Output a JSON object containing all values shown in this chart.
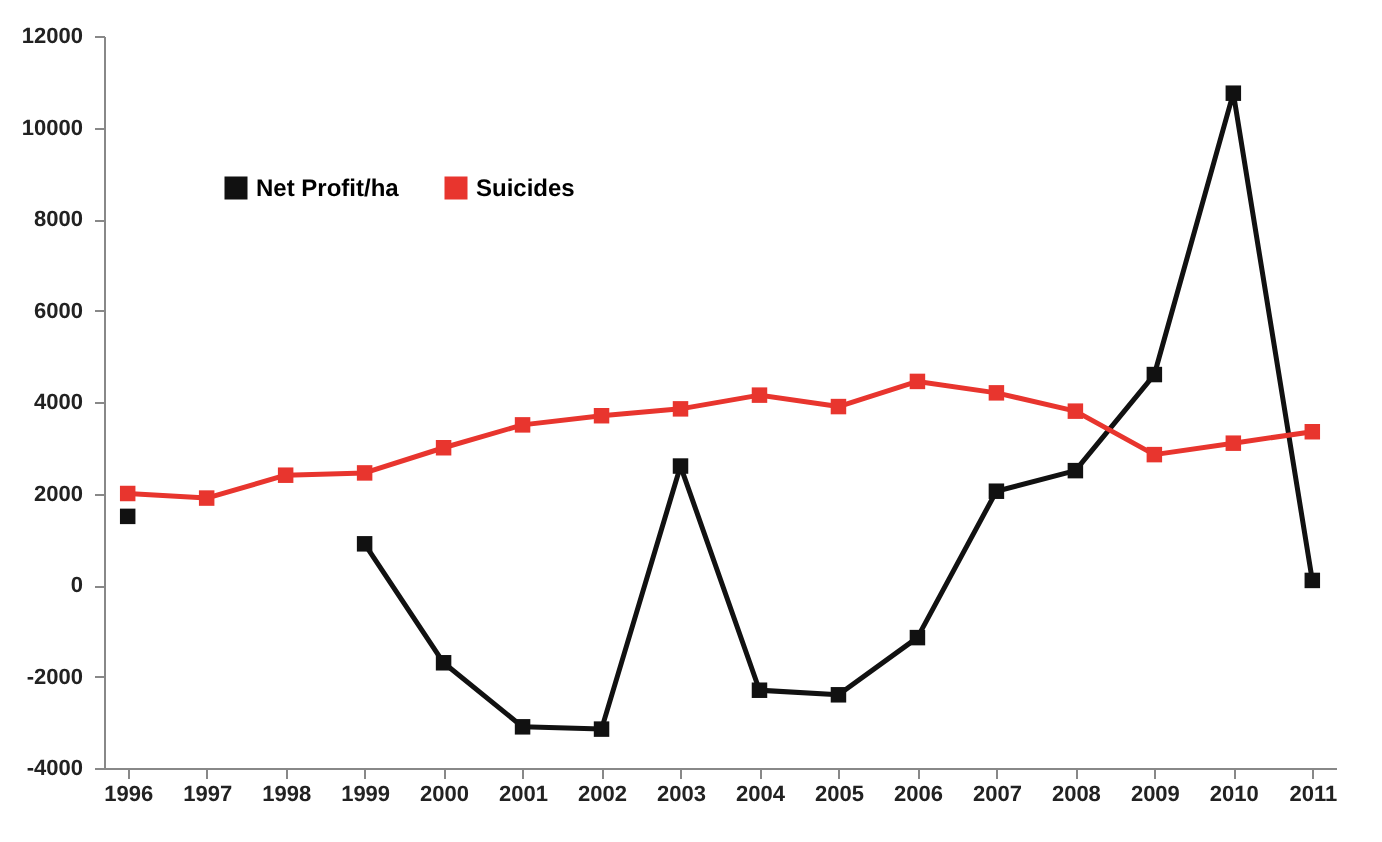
{
  "chart_data": {
    "type": "line",
    "categories": [
      "1996",
      "1997",
      "1998",
      "1999",
      "2000",
      "2001",
      "2002",
      "2003",
      "2004",
      "2005",
      "2006",
      "2007",
      "2008",
      "2009",
      "2010",
      "2011"
    ],
    "series": [
      {
        "name": "Net Profit/ha",
        "color": "#111111",
        "values": [
          1500,
          null,
          null,
          900,
          -1700,
          -3100,
          -3150,
          2600,
          -2300,
          -2400,
          -1150,
          2050,
          2500,
          4600,
          10750,
          100
        ]
      },
      {
        "name": "Suicides",
        "color": "#e8352e",
        "values": [
          2000,
          1900,
          2400,
          2450,
          3000,
          3500,
          3700,
          3850,
          4150,
          3900,
          4450,
          4200,
          3800,
          2850,
          3100,
          3350
        ]
      }
    ],
    "ylim": [
      -4000,
      12000
    ],
    "yticks": [
      -4000,
      -2000,
      0,
      2000,
      4000,
      6000,
      8000,
      10000,
      12000
    ],
    "grid": false,
    "legend": "top left",
    "marker": "square",
    "line_style": "solid"
  }
}
